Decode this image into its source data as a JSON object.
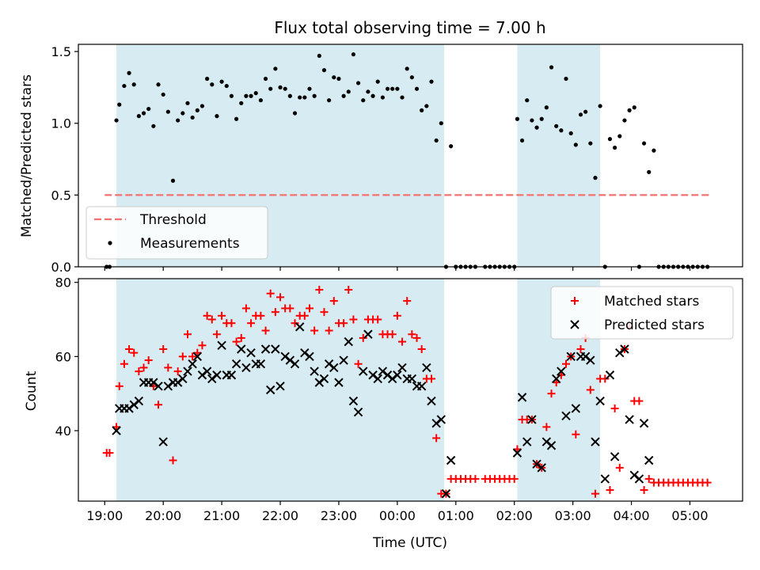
{
  "title": "Flux total observing time = 7.00 h",
  "chart_data": [
    {
      "type": "scatter",
      "ylabel": "Matched/Predicted stars",
      "ylim": [
        0.0,
        1.55
      ],
      "yticks": [
        "0.0",
        "0.5",
        "1.0",
        "1.5"
      ],
      "ytick_values": [
        0.0,
        0.5,
        1.0,
        1.5
      ],
      "grid": false,
      "legend_position": "lower-left",
      "shaded_intervals": [
        [
          "19:12",
          "00:48"
        ],
        [
          "02:03",
          "03:28"
        ]
      ],
      "threshold": {
        "name": "Threshold",
        "value": 0.5,
        "x_range": [
          "19:00",
          "05:20"
        ],
        "color": "#f47171"
      },
      "series": [
        {
          "name": "Measurements",
          "marker": "dot",
          "color": "#000000",
          "x": [
            "19:02",
            "19:05",
            "19:12",
            "19:15",
            "19:20",
            "19:25",
            "19:30",
            "19:35",
            "19:40",
            "19:45",
            "19:50",
            "19:55",
            "20:00",
            "20:05",
            "20:10",
            "20:15",
            "20:20",
            "20:25",
            "20:30",
            "20:35",
            "20:40",
            "20:45",
            "20:50",
            "20:55",
            "21:00",
            "21:05",
            "21:10",
            "21:15",
            "21:20",
            "21:25",
            "21:30",
            "21:35",
            "21:40",
            "21:45",
            "21:50",
            "21:55",
            "22:00",
            "22:05",
            "22:10",
            "22:15",
            "22:20",
            "22:25",
            "22:30",
            "22:35",
            "22:40",
            "22:45",
            "22:50",
            "22:55",
            "23:00",
            "23:05",
            "23:10",
            "23:15",
            "23:20",
            "23:25",
            "23:30",
            "23:35",
            "23:40",
            "23:45",
            "23:50",
            "23:55",
            "00:00",
            "00:05",
            "00:10",
            "00:15",
            "00:20",
            "00:25",
            "00:30",
            "00:35",
            "00:40",
            "00:45",
            "00:50",
            "00:55",
            "01:00",
            "01:05",
            "01:10",
            "01:15",
            "01:20",
            "01:30",
            "01:35",
            "01:40",
            "01:45",
            "01:50",
            "01:55",
            "02:00",
            "02:03",
            "02:08",
            "02:13",
            "02:18",
            "02:23",
            "02:28",
            "02:33",
            "02:38",
            "02:43",
            "02:48",
            "02:53",
            "02:58",
            "03:03",
            "03:08",
            "03:13",
            "03:18",
            "03:23",
            "03:28",
            "03:33",
            "03:38",
            "03:43",
            "03:48",
            "03:53",
            "03:58",
            "04:03",
            "04:08",
            "04:13",
            "04:18",
            "04:23",
            "04:28",
            "04:33",
            "04:38",
            "04:43",
            "04:48",
            "04:53",
            "04:58",
            "05:03",
            "05:08",
            "05:13",
            "05:18"
          ],
          "y": [
            0.0,
            0.0,
            1.02,
            1.13,
            1.26,
            1.35,
            1.27,
            1.05,
            1.07,
            1.1,
            0.98,
            1.27,
            1.2,
            1.08,
            0.6,
            1.02,
            1.07,
            1.14,
            1.04,
            1.09,
            1.12,
            1.31,
            1.27,
            1.05,
            1.29,
            1.26,
            1.19,
            1.03,
            1.14,
            1.19,
            1.19,
            1.21,
            1.16,
            1.31,
            1.24,
            1.38,
            1.25,
            1.24,
            1.19,
            1.07,
            1.18,
            1.18,
            1.24,
            1.19,
            1.47,
            1.37,
            1.16,
            1.32,
            1.31,
            1.19,
            1.22,
            1.48,
            1.28,
            1.16,
            1.22,
            1.19,
            1.29,
            1.18,
            1.24,
            1.24,
            1.24,
            1.18,
            1.38,
            1.32,
            1.24,
            1.09,
            1.12,
            1.29,
            0.88,
            1.0,
            0.0,
            0.84,
            0.0,
            0.0,
            0.0,
            0.0,
            0.0,
            0.0,
            0.0,
            0.0,
            0.0,
            0.0,
            0.0,
            0.0,
            1.03,
            0.88,
            1.16,
            1.02,
            0.97,
            1.03,
            1.11,
            1.39,
            0.98,
            0.95,
            1.31,
            0.93,
            0.85,
            1.06,
            1.08,
            0.86,
            0.62,
            1.12,
            0.0,
            0.89,
            0.83,
            0.91,
            1.02,
            1.09,
            1.11,
            0.0,
            0.86,
            0.66,
            0.81,
            0.0,
            0.0,
            0.0,
            0.0,
            0.0,
            0.0,
            0.0,
            0.0,
            0.0,
            0.0,
            0.0
          ]
        }
      ]
    },
    {
      "type": "scatter",
      "xlabel": "Time (UTC)",
      "ylabel": "Count",
      "ylim": [
        21,
        81
      ],
      "yticks": [
        "40",
        "60",
        "80"
      ],
      "ytick_values": [
        40,
        60,
        80
      ],
      "xticks": [
        "19:00",
        "20:00",
        "21:00",
        "22:00",
        "23:00",
        "00:00",
        "01:00",
        "02:00",
        "03:00",
        "04:00",
        "05:00"
      ],
      "grid": false,
      "legend_position": "upper-right",
      "shaded_intervals": [
        [
          "19:12",
          "00:48"
        ],
        [
          "02:03",
          "03:28"
        ]
      ],
      "series": [
        {
          "name": "Matched stars",
          "marker": "plus",
          "color": "#ff0000",
          "x": [
            "19:02",
            "19:05",
            "19:12",
            "19:15",
            "19:20",
            "19:25",
            "19:30",
            "19:35",
            "19:40",
            "19:45",
            "19:50",
            "19:55",
            "20:00",
            "20:05",
            "20:10",
            "20:15",
            "20:20",
            "20:25",
            "20:30",
            "20:35",
            "20:40",
            "20:45",
            "20:50",
            "20:55",
            "21:00",
            "21:05",
            "21:10",
            "21:15",
            "21:20",
            "21:25",
            "21:30",
            "21:35",
            "21:40",
            "21:45",
            "21:50",
            "21:55",
            "22:00",
            "22:05",
            "22:10",
            "22:15",
            "22:20",
            "22:25",
            "22:30",
            "22:35",
            "22:40",
            "22:45",
            "22:50",
            "22:55",
            "23:00",
            "23:05",
            "23:10",
            "23:15",
            "23:20",
            "23:25",
            "23:30",
            "23:35",
            "23:40",
            "23:45",
            "23:50",
            "23:55",
            "00:00",
            "00:05",
            "00:10",
            "00:15",
            "00:20",
            "00:25",
            "00:30",
            "00:35",
            "00:40",
            "00:45",
            "00:50",
            "00:55",
            "01:00",
            "01:05",
            "01:10",
            "01:15",
            "01:20",
            "01:30",
            "01:35",
            "01:40",
            "01:45",
            "01:50",
            "01:55",
            "02:00",
            "02:03",
            "02:08",
            "02:13",
            "02:18",
            "02:23",
            "02:28",
            "02:33",
            "02:38",
            "02:43",
            "02:48",
            "02:53",
            "02:58",
            "03:03",
            "03:08",
            "03:13",
            "03:18",
            "03:23",
            "03:28",
            "03:33",
            "03:38",
            "03:43",
            "03:48",
            "03:53",
            "03:58",
            "04:03",
            "04:08",
            "04:13",
            "04:18",
            "04:23",
            "04:28",
            "04:33",
            "04:38",
            "04:43",
            "04:48",
            "04:53",
            "04:58",
            "05:03",
            "05:08",
            "05:13",
            "05:18"
          ],
          "y": [
            34,
            34,
            41,
            52,
            58,
            62,
            61,
            56,
            57,
            59,
            52,
            47,
            62,
            57,
            32,
            56,
            60,
            66,
            60,
            61,
            63,
            71,
            70,
            66,
            71,
            69,
            69,
            64,
            65,
            73,
            69,
            71,
            71,
            67,
            77,
            72,
            76,
            73,
            73,
            69,
            71,
            71,
            73,
            67,
            78,
            72,
            67,
            75,
            69,
            69,
            78,
            70,
            58,
            65,
            70,
            70,
            70,
            66,
            66,
            66,
            71,
            64,
            75,
            66,
            65,
            62,
            54,
            54,
            38,
            23,
            23,
            27,
            27,
            27,
            27,
            27,
            27,
            27,
            27,
            27,
            27,
            27,
            27,
            27,
            35,
            43,
            43,
            43,
            31,
            30,
            41,
            50,
            53,
            55,
            58,
            60,
            39,
            62,
            65,
            51,
            23,
            54,
            54,
            24,
            46,
            30,
            62,
            68,
            48,
            48,
            24,
            27,
            26,
            26,
            26,
            26,
            26,
            26,
            26,
            26,
            26,
            26,
            26,
            26
          ]
        },
        {
          "name": "Predicted stars",
          "marker": "x",
          "color": "#000000",
          "x": [
            "19:12",
            "19:15",
            "19:20",
            "19:25",
            "19:30",
            "19:35",
            "19:40",
            "19:45",
            "19:50",
            "19:55",
            "20:00",
            "20:05",
            "20:10",
            "20:15",
            "20:20",
            "20:25",
            "20:30",
            "20:35",
            "20:40",
            "20:45",
            "20:50",
            "20:55",
            "21:00",
            "21:05",
            "21:10",
            "21:15",
            "21:20",
            "21:25",
            "21:30",
            "21:35",
            "21:40",
            "21:45",
            "21:50",
            "21:55",
            "22:00",
            "22:05",
            "22:10",
            "22:15",
            "22:20",
            "22:25",
            "22:30",
            "22:35",
            "22:40",
            "22:45",
            "22:50",
            "22:55",
            "23:00",
            "23:05",
            "23:10",
            "23:15",
            "23:20",
            "23:25",
            "23:30",
            "23:35",
            "23:40",
            "23:45",
            "23:50",
            "23:55",
            "00:00",
            "00:05",
            "00:10",
            "00:15",
            "00:20",
            "00:25",
            "00:30",
            "00:35",
            "00:40",
            "00:45",
            "00:50",
            "00:55",
            "02:03",
            "02:08",
            "02:13",
            "02:18",
            "02:23",
            "02:28",
            "02:33",
            "02:38",
            "02:43",
            "02:48",
            "02:53",
            "02:58",
            "03:03",
            "03:08",
            "03:13",
            "03:18",
            "03:23",
            "03:28",
            "03:33",
            "03:38",
            "03:43",
            "03:48",
            "03:53",
            "03:58",
            "04:03",
            "04:08",
            "04:13",
            "04:18"
          ],
          "y": [
            40,
            46,
            46,
            46,
            47,
            48,
            53,
            53,
            53,
            52,
            37,
            52,
            53,
            53,
            54,
            56,
            58,
            60,
            55,
            56,
            54,
            55,
            63,
            55,
            55,
            58,
            62,
            57,
            61,
            58,
            58,
            62,
            51,
            62,
            52,
            60,
            59,
            58,
            68,
            61,
            60,
            56,
            53,
            54,
            58,
            57,
            53,
            59,
            64,
            48,
            45,
            56,
            66,
            55,
            54,
            56,
            55,
            54,
            55,
            57,
            54,
            54,
            52,
            52,
            57,
            48,
            42,
            43,
            23,
            32,
            34,
            49,
            37,
            43,
            31,
            30,
            37,
            36,
            54,
            56,
            44,
            60,
            46,
            60,
            60,
            59,
            37,
            48,
            27,
            55,
            33,
            61,
            62,
            43,
            28,
            27,
            42,
            32
          ]
        }
      ]
    }
  ]
}
